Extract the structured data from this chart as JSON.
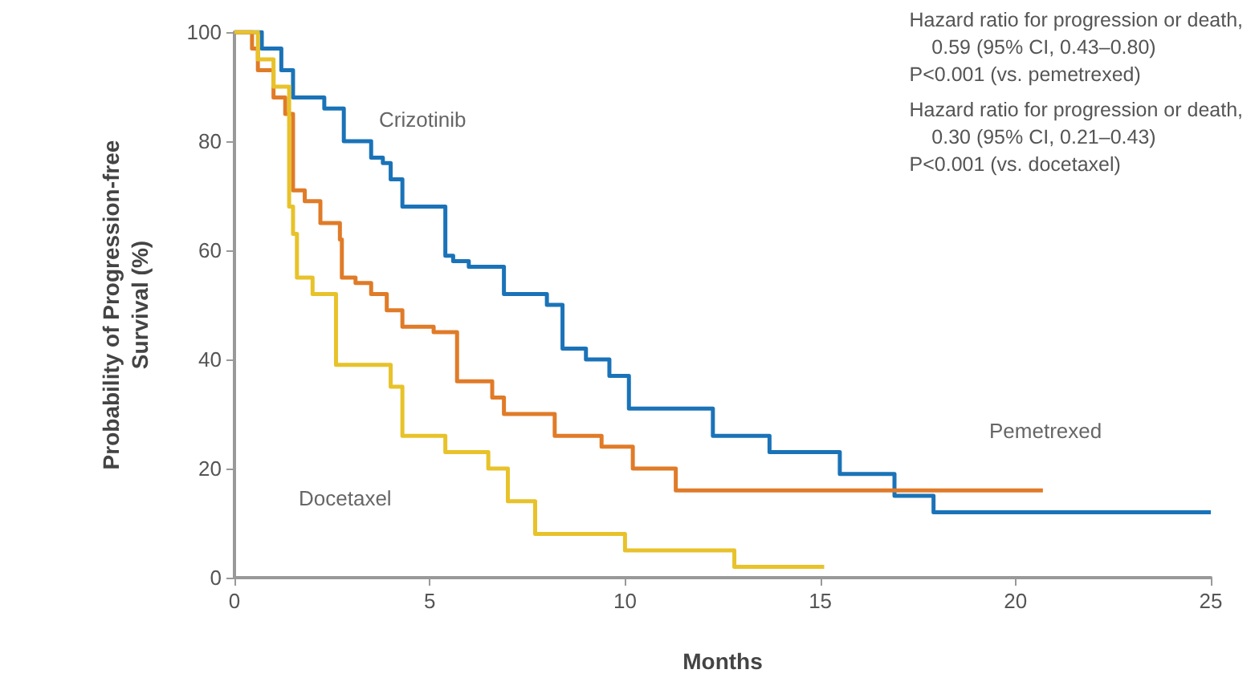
{
  "chart_data": {
    "type": "step",
    "xlabel": "Months",
    "ylabel": "Probability of Progression-free\nSurvival (%)",
    "xlim": [
      0,
      25
    ],
    "xticks": [
      0,
      5,
      10,
      15,
      20,
      25
    ],
    "ylim": [
      0,
      100
    ],
    "yticks": [
      0,
      20,
      40,
      60,
      80,
      100
    ],
    "grid": false,
    "marker": "none",
    "line_style": "solid",
    "series": [
      {
        "name": "Crizotinib",
        "color": "#1a73b8",
        "x": [
          0,
          0.7,
          1.2,
          1.5,
          2.3,
          2.8,
          3.5,
          3.8,
          4.0,
          4.3,
          5.4,
          5.6,
          6.0,
          6.9,
          8.0,
          8.4,
          9.0,
          9.6,
          10.1,
          12.25,
          13.7,
          15.5,
          16.9,
          17.9,
          25
        ],
        "values": [
          100,
          97,
          93,
          88,
          86,
          80,
          77,
          76,
          73,
          68,
          59,
          58,
          57,
          52,
          50,
          42,
          40,
          37,
          31,
          26,
          23,
          19,
          15,
          12,
          12
        ]
      },
      {
        "name": "Pemetrexed",
        "color": "#e07b28",
        "x": [
          0,
          0.45,
          0.6,
          1.0,
          1.3,
          1.5,
          1.8,
          2.2,
          2.7,
          2.75,
          3.1,
          3.5,
          3.9,
          4.3,
          5.1,
          5.7,
          6.6,
          6.9,
          8.2,
          9.4,
          10.2,
          11.3,
          20.7
        ],
        "values": [
          100,
          97,
          93,
          88,
          85,
          71,
          69,
          65,
          62,
          55,
          54,
          52,
          49,
          46,
          45,
          36,
          33,
          30,
          26,
          24,
          20,
          16,
          16
        ]
      },
      {
        "name": "Docetaxel",
        "color": "#e8c22a",
        "x": [
          0,
          0.6,
          1.0,
          1.4,
          1.5,
          1.6,
          2.0,
          2.6,
          4.0,
          4.3,
          5.4,
          6.5,
          7.0,
          7.7,
          10.0,
          12.8,
          15.1
        ],
        "values": [
          100,
          95,
          90,
          68,
          63,
          55,
          52,
          39,
          35,
          26,
          23,
          20,
          14,
          8,
          5,
          2,
          2
        ]
      }
    ],
    "annotations": [
      "Hazard ratio for progression or death,\n    0.59 (95% CI, 0.43–0.80)\nP<0.001 (vs. pemetrexed)",
      "Hazard ratio for progression or death,\n    0.30 (95% CI, 0.21–0.43)\nP<0.001 (vs. docetaxel)"
    ]
  }
}
